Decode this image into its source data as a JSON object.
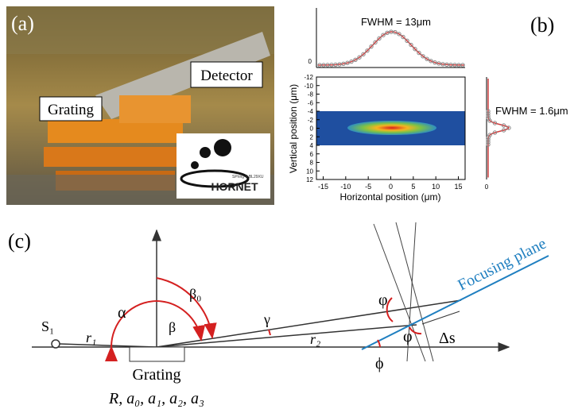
{
  "panel_a": {
    "label": "(a)",
    "detector_callout": "Detector",
    "grating_callout": "Grating",
    "logo_caption": "SPring-8 BL29XU",
    "logo_text": "HORNET"
  },
  "panel_b": {
    "label": "(b)",
    "top_fwhm": "FWHM = 13μm",
    "side_fwhm": "FWHM = 1.6μm",
    "x_axis_label": "Horizontal position (μm)",
    "y_axis_label": "Vertical position (μm)",
    "xticks": [
      -15,
      -10,
      -5,
      0,
      5,
      10,
      15
    ],
    "yticks": [
      -12,
      -10,
      -8,
      -6,
      -4,
      -2,
      0,
      2,
      4,
      6,
      8,
      10,
      12
    ],
    "top_ytick": 0,
    "side_xtick": 0
  },
  "panel_c": {
    "label": "(c)",
    "source": "S₁",
    "r1": "r₁",
    "r2": "r₂",
    "alpha": "α",
    "beta0": "β₀",
    "beta": "β",
    "gamma": "γ",
    "phi_upper": "φ",
    "phi_lower": "φ",
    "delta_s": "Δs",
    "tilt": "ϕ",
    "focusing_plane": "Focusing plane",
    "grating": "Grating",
    "grating_params": "R, a₀, a₁, a₂, a₃"
  }
}
